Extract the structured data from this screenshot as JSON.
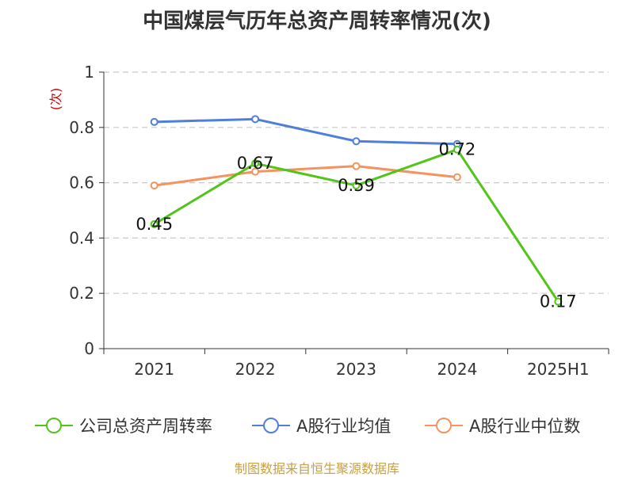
{
  "chart_data": {
    "type": "line",
    "title": "中国煤层气历年总资产周转率情况(次)",
    "ylabel": "(次)",
    "xlabel": "",
    "categories": [
      "2021",
      "2022",
      "2023",
      "2024",
      "2025H1"
    ],
    "ylim": [
      0,
      1
    ],
    "yticks": [
      "0",
      "0.2",
      "0.4",
      "0.6",
      "0.8",
      "1"
    ],
    "grid": true,
    "legend_position": "bottom",
    "series": [
      {
        "name": "公司总资产周转率",
        "color": "#52c41a",
        "values": [
          0.45,
          0.67,
          0.59,
          0.72,
          0.17
        ],
        "labels": [
          "0.45",
          "0.67",
          "0.59",
          "0.72",
          "0.17"
        ]
      },
      {
        "name": "A股行业均值",
        "color": "#4f7fdb",
        "values": [
          0.82,
          0.83,
          0.75,
          0.74,
          null
        ]
      },
      {
        "name": "A股行业中位数",
        "color": "#f4935e",
        "values": [
          0.59,
          0.64,
          0.66,
          0.62,
          null
        ]
      }
    ],
    "source": "制图数据来自恒生聚源数据库"
  }
}
